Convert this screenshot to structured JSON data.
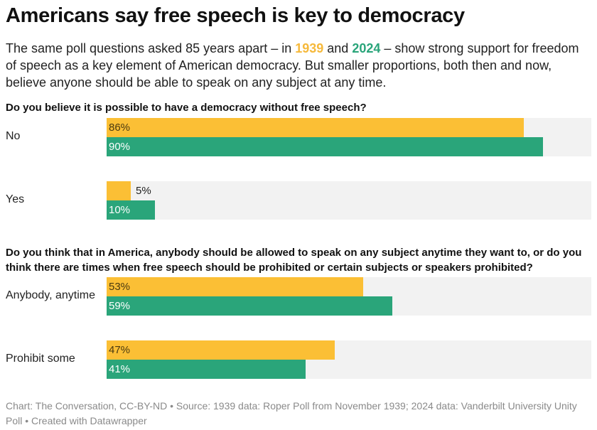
{
  "header": {
    "title": "Americans say free speech is key to democracy",
    "subtitle_part1": "The same poll questions asked 85 years apart – in ",
    "subtitle_year1": "1939",
    "subtitle_part2": " and ",
    "subtitle_year2": "2024",
    "subtitle_part3": " – show strong support for freedom of speech as a key element of American democracy. But smaller proportions, both then and now, believe anyone should be able to speak on any subject at any time."
  },
  "colors": {
    "y1939": "#fbbf35",
    "y2024": "#2aa57a",
    "track": "#f2f2f2"
  },
  "chart_data": [
    {
      "type": "bar",
      "orientation": "horizontal",
      "title": "Do you believe it is possible to have a democracy without free speech?",
      "categories": [
        "No",
        "Yes"
      ],
      "series": [
        {
          "name": "1939",
          "values": [
            86,
            5
          ],
          "labels": [
            "86%",
            "5%"
          ]
        },
        {
          "name": "2024",
          "values": [
            90,
            10
          ],
          "labels": [
            "90%",
            "10%"
          ]
        }
      ],
      "xlim": [
        0,
        100
      ],
      "unit": "%"
    },
    {
      "type": "bar",
      "orientation": "horizontal",
      "title": "Do you think that in America, anybody should be allowed to speak on any subject anytime they want to, or do you think there are times when free speech should be prohibited or certain subjects or speakers prohibited?",
      "categories": [
        "Anybody, anytime",
        "Prohibit some"
      ],
      "series": [
        {
          "name": "1939",
          "values": [
            53,
            47
          ],
          "labels": [
            "53%",
            "47%"
          ]
        },
        {
          "name": "2024",
          "values": [
            59,
            41
          ],
          "labels": [
            "59%",
            "41%"
          ]
        }
      ],
      "xlim": [
        0,
        100
      ],
      "unit": "%"
    }
  ],
  "footer": {
    "text": "Chart: The Conversation, CC-BY-ND • Source: 1939 data: Roper Poll from November 1939; 2024 data: Vanderbilt University Unity Poll  • Created with Datawrapper"
  }
}
